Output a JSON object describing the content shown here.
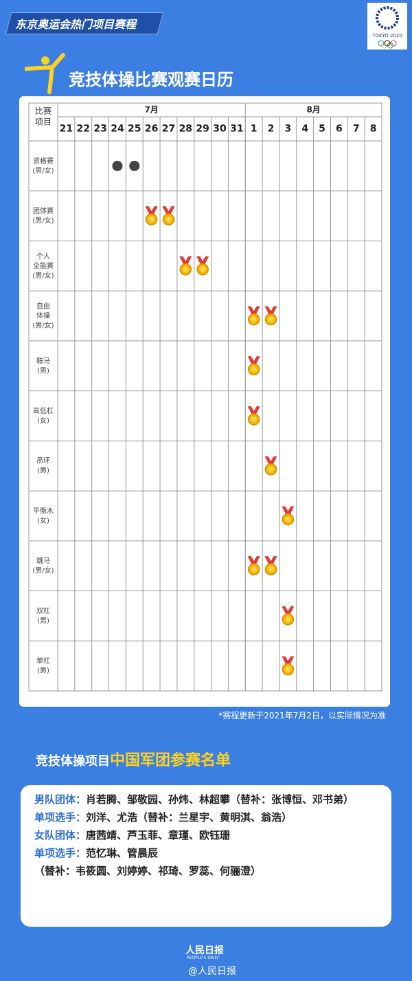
{
  "header": {
    "banner": "东京奥运会热门项目赛程",
    "logo_text": "TOKYO 2020",
    "title": "竞技体操比赛观赛日历"
  },
  "table": {
    "corner": [
      "比赛",
      "项目"
    ],
    "months": [
      {
        "label": "7月",
        "span": 11
      },
      {
        "label": "8月",
        "span": 8
      }
    ],
    "days": [
      21,
      22,
      23,
      24,
      25,
      26,
      27,
      28,
      29,
      30,
      31,
      1,
      2,
      3,
      4,
      5,
      6,
      7,
      8
    ],
    "rows": [
      {
        "label": [
          "资格赛",
          "(男/女)"
        ],
        "cells": [
          null,
          null,
          null,
          "dot",
          "dot",
          null,
          null,
          null,
          null,
          null,
          null,
          null,
          null,
          null,
          null,
          null,
          null,
          null,
          null
        ]
      },
      {
        "label": [
          "团体赛",
          "(男/女)"
        ],
        "cells": [
          null,
          null,
          null,
          null,
          null,
          "medal",
          "medal",
          null,
          null,
          null,
          null,
          null,
          null,
          null,
          null,
          null,
          null,
          null,
          null
        ]
      },
      {
        "label": [
          "个人",
          "全能赛",
          "(男/女)"
        ],
        "cells": [
          null,
          null,
          null,
          null,
          null,
          null,
          null,
          "medal",
          "medal",
          null,
          null,
          null,
          null,
          null,
          null,
          null,
          null,
          null,
          null
        ]
      },
      {
        "label": [
          "自由",
          "体操",
          "(男/女)"
        ],
        "cells": [
          null,
          null,
          null,
          null,
          null,
          null,
          null,
          null,
          null,
          null,
          null,
          "medal",
          "medal",
          null,
          null,
          null,
          null,
          null,
          null
        ]
      },
      {
        "label": [
          "鞍马",
          "(男)"
        ],
        "cells": [
          null,
          null,
          null,
          null,
          null,
          null,
          null,
          null,
          null,
          null,
          null,
          "medal",
          null,
          null,
          null,
          null,
          null,
          null,
          null
        ]
      },
      {
        "label": [
          "高低杠",
          "(女)"
        ],
        "cells": [
          null,
          null,
          null,
          null,
          null,
          null,
          null,
          null,
          null,
          null,
          null,
          "medal",
          null,
          null,
          null,
          null,
          null,
          null,
          null
        ]
      },
      {
        "label": [
          "吊环",
          "(男)"
        ],
        "cells": [
          null,
          null,
          null,
          null,
          null,
          null,
          null,
          null,
          null,
          null,
          null,
          null,
          "medal",
          null,
          null,
          null,
          null,
          null,
          null
        ]
      },
      {
        "label": [
          "平衡木",
          "(女)"
        ],
        "cells": [
          null,
          null,
          null,
          null,
          null,
          null,
          null,
          null,
          null,
          null,
          null,
          null,
          null,
          "medal",
          null,
          null,
          null,
          null,
          null
        ]
      },
      {
        "label": [
          "跳马",
          "(男/女)"
        ],
        "cells": [
          null,
          null,
          null,
          null,
          null,
          null,
          null,
          null,
          null,
          null,
          null,
          "medal",
          "medal",
          null,
          null,
          null,
          null,
          null,
          null
        ]
      },
      {
        "label": [
          "双杠",
          "(男)"
        ],
        "cells": [
          null,
          null,
          null,
          null,
          null,
          null,
          null,
          null,
          null,
          null,
          null,
          null,
          null,
          "medal",
          null,
          null,
          null,
          null,
          null
        ]
      },
      {
        "label": [
          "单杠",
          "(男)"
        ],
        "cells": [
          null,
          null,
          null,
          null,
          null,
          null,
          null,
          null,
          null,
          null,
          null,
          null,
          null,
          "medal",
          null,
          null,
          null,
          null,
          null
        ]
      }
    ]
  },
  "note": "*赛程更新于2021年7月2日，以实际情况为准",
  "roster": {
    "title_a": "竞技体操项目",
    "title_b": "中国军团参赛名单",
    "entries": [
      {
        "label": "男队团体：",
        "text": "肖若腾、邹敬园、孙炜、林超攀（替补：张博恒、邓书弟）"
      },
      {
        "label": "单项选手：",
        "text": "刘洋、尤浩（替补：兰星宇、黄明淇、翁浩）"
      },
      {
        "label": "女队团体：",
        "text": "唐茜靖、芦玉菲、章瑾、欧钰珊"
      },
      {
        "label": "单项选手：",
        "text": "范忆琳、管晨辰"
      },
      {
        "text": "（替补：韦筱圆、刘婷婷、祁琦、罗蕊、何骊澄）"
      }
    ]
  },
  "footer": {
    "brand": "人民日报",
    "brand_en": "PEOPLE'S DAILY",
    "handle": "@人民日报"
  }
}
